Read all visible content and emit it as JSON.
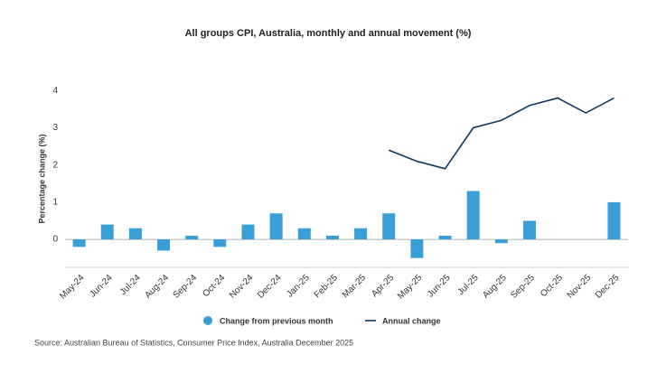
{
  "chart_data": {
    "type": "bar-line",
    "title": "All groups CPI, Australia, monthly and annual movement (%)",
    "y_label": "Percentage change (%)",
    "source": "Source: Australian Bureau of Statistics, Consumer Price Index, Australia December 2025",
    "categories": [
      "May-24",
      "Jun-24",
      "Jul-24",
      "Aug-24",
      "Sep-24",
      "Oct-24",
      "Nov-24",
      "Dec-24",
      "Jan-25",
      "Feb-25",
      "Mar-25",
      "Apr-25",
      "May-25",
      "Jun-25",
      "Jul-25",
      "Aug-25",
      "Sep-25",
      "Oct-25",
      "Nov-25",
      "Dec-25"
    ],
    "series": [
      {
        "name": "Change from previous month",
        "type": "bar",
        "color": "#3a9fd6",
        "values": [
          -0.2,
          0.4,
          0.3,
          -0.3,
          0.1,
          -0.2,
          0.4,
          0.7,
          0.3,
          0.1,
          0.3,
          0.7,
          -0.5,
          0.1,
          1.3,
          -0.1,
          0.5,
          null,
          null,
          1.0
        ]
      },
      {
        "name": "Annual change",
        "type": "line",
        "color": "#12375e",
        "values": [
          null,
          null,
          null,
          null,
          null,
          null,
          null,
          null,
          null,
          null,
          null,
          2.4,
          2.1,
          1.9,
          3.0,
          3.2,
          3.6,
          3.8,
          3.4,
          3.8
        ]
      }
    ],
    "ylim": [
      -0.75,
      4.25
    ],
    "yticks": [
      0,
      1,
      2,
      3,
      4
    ],
    "grid": false
  }
}
